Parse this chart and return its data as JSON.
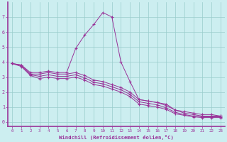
{
  "xlabel": "Windchill (Refroidissement éolien,°C)",
  "bg_color": "#cceef0",
  "line_color": "#993399",
  "grid_color": "#99cccc",
  "xlim": [
    -0.5,
    23.5
  ],
  "ylim": [
    -0.3,
    8.0
  ],
  "xticks": [
    0,
    1,
    2,
    3,
    4,
    5,
    6,
    7,
    8,
    9,
    10,
    11,
    12,
    13,
    14,
    15,
    16,
    17,
    18,
    19,
    20,
    21,
    22,
    23
  ],
  "yticks": [
    0,
    1,
    2,
    3,
    4,
    5,
    6,
    7
  ],
  "series": [
    [
      3.9,
      3.8,
      3.3,
      3.3,
      3.4,
      3.3,
      3.3,
      4.9,
      5.8,
      6.5,
      7.3,
      7.0,
      4.0,
      2.7,
      1.5,
      1.4,
      1.3,
      1.2,
      0.8,
      0.7,
      0.6,
      0.5,
      0.5,
      0.4
    ],
    [
      3.9,
      3.8,
      3.2,
      3.2,
      3.3,
      3.2,
      3.2,
      3.3,
      3.1,
      2.8,
      2.7,
      2.5,
      2.3,
      2.0,
      1.5,
      1.4,
      1.3,
      1.1,
      0.8,
      0.6,
      0.5,
      0.4,
      0.4,
      0.4
    ],
    [
      3.9,
      3.75,
      3.15,
      3.05,
      3.15,
      3.05,
      3.05,
      3.15,
      2.95,
      2.65,
      2.55,
      2.35,
      2.15,
      1.85,
      1.35,
      1.25,
      1.15,
      0.95,
      0.65,
      0.5,
      0.4,
      0.35,
      0.35,
      0.35
    ],
    [
      3.9,
      3.7,
      3.1,
      2.9,
      3.0,
      2.9,
      2.9,
      3.0,
      2.8,
      2.5,
      2.4,
      2.2,
      2.0,
      1.7,
      1.2,
      1.1,
      1.0,
      0.85,
      0.55,
      0.45,
      0.35,
      0.3,
      0.3,
      0.3
    ]
  ]
}
